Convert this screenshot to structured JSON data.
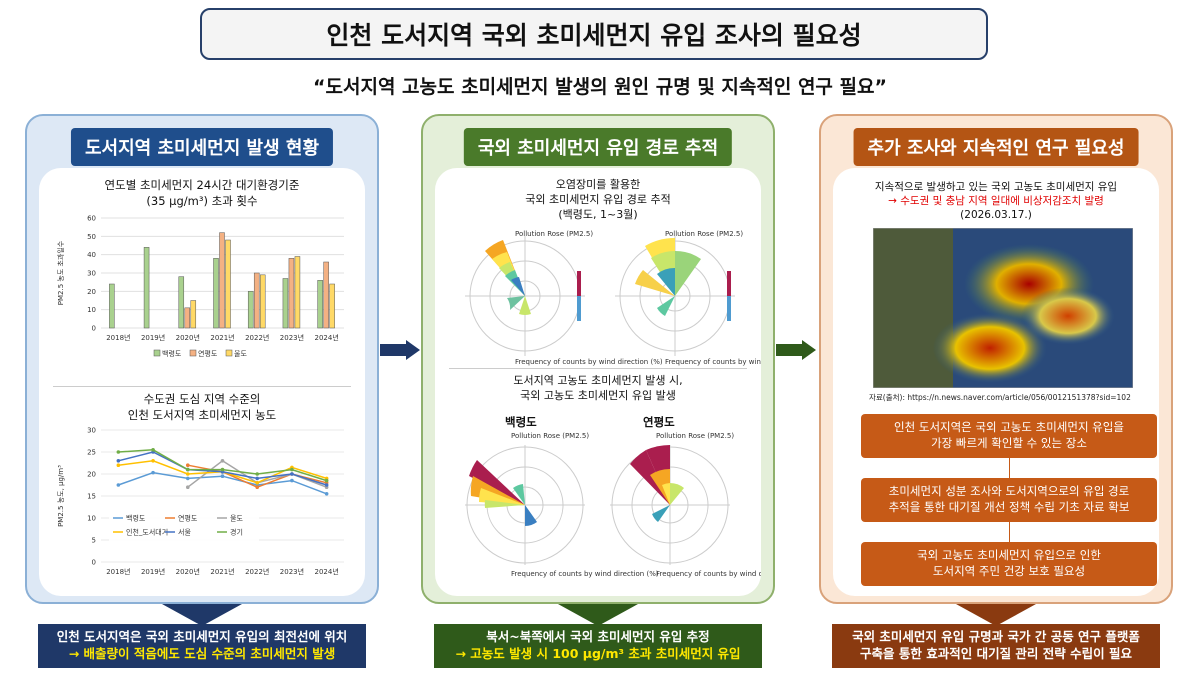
{
  "title": "인천 도서지역 국외 초미세먼지 유입 조사의 필요성",
  "subtitle": "“도서지역 고농도 초미세먼지 발생의 원인 규명 및 지속적인 연구 필요”",
  "col1": {
    "header": "도서지역 초미세먼지 발생 현황",
    "chart1_title_line1": "연도별 초미세먼지 24시간 대기환경기준",
    "chart1_title_line2": "(35 μg/m³) 초과 횟수",
    "chart1_ylabel": "PM2.5 농도 초과일수",
    "chart2_title_line1": "수도권 도심 지역 수준의",
    "chart2_title_line2": "인천 도서지역 초미세먼지 농도",
    "chart2_ylabel": "PM2.5 농도, μg/m³",
    "footer_line1": "인천 도서지역은 국외 초미세먼지 유입의 최전선에 위치",
    "footer_line2": "→ 배출량이 적음에도 도심 수준의 초미세먼지 발생"
  },
  "col2": {
    "header": "국외 초미세먼지 유입 경로 추적",
    "title1_line1": "오염장미를 활용한",
    "title1_line2": "국외 초미세먼지 유입 경로 추적",
    "title1_line3": "(백령도, 1~3월)",
    "title2_line1": "도서지역 고농도 초미세먼지 발생 시,",
    "title2_line2": "국외 고농도 초미세먼지 유입 발생",
    "label_left": "백령도",
    "label_right": "연평도",
    "rose_title": "Pollution Rose (PM2.5)",
    "rose_caption": "Frequency of counts by wind direction (%)",
    "footer_line1": "북서~북쪽에서 국외 초미세먼지 유입 추정",
    "footer_line2": "→ 고농도 발생 시 100 μg/m³ 초과 초미세먼지 유입"
  },
  "col3": {
    "header": "추가 조사와 지속적인 연구 필요성",
    "top_line1": "지속적으로 발생하고 있는 국외 고농도 초미세먼지 유입",
    "top_line2": "→ 수도권 및 충남 지역 일대에 비상저감조치 발령",
    "top_line3": "(2026.03.17.)",
    "source": "자료(출처): https://n.news.naver.com/article/056/0012151378?sid=102",
    "box1_line1": "인천 도서지역은 국외 고농도 초미세먼지 유입을",
    "box1_line2": "가장 빠르게 확인할 수 있는 장소",
    "box2_line1": "초미세먼지 성분 조사와 도서지역으로의 유입 경로",
    "box2_line2": "추적을 통한 대기질 개선 정책 수립 기초 자료 확보",
    "box3_line1": "국외 고농도 초미세먼지 유입으로 인한",
    "box3_line2": "도서지역 주민 건강 보호 필요성",
    "footer_line1": "국외 초미세먼지 유입 규명과 국가 간 공동 연구 플랫폼",
    "footer_line2": "구축을 통한 효과적인 대기질 관리 전략 수립이 필요"
  },
  "colors": {
    "blue_header": "#1f4e8c",
    "green_header": "#4a7a2a",
    "orange_header": "#b45514",
    "footer_blue": "#1f3868",
    "footer_green": "#2f5a1a",
    "footer_brown": "#8a3a10",
    "highlight_yellow": "#ffe800",
    "highlight_red": "#e00000"
  },
  "chart_data": [
    {
      "type": "bar",
      "categories": [
        "2018년",
        "2019년",
        "2020년",
        "2021년",
        "2022년",
        "2023년",
        "2024년"
      ],
      "series": [
        {
          "name": "백령도",
          "values": [
            24,
            44,
            28,
            38,
            20,
            27,
            26
          ],
          "color": "#a9d18e"
        },
        {
          "name": "연평도",
          "values": [
            0,
            0,
            11,
            52,
            30,
            38,
            36
          ],
          "color": "#f4b183"
        },
        {
          "name": "울도",
          "values": [
            0,
            0,
            15,
            48,
            29,
            39,
            24
          ],
          "color": "#ffd966"
        }
      ],
      "ylim": [
        0,
        60
      ],
      "yticks": [
        0,
        10,
        20,
        30,
        40,
        50,
        60
      ]
    },
    {
      "type": "line",
      "categories": [
        "2018년",
        "2019년",
        "2020년",
        "2021년",
        "2022년",
        "2023년",
        "2024년"
      ],
      "series": [
        {
          "name": "백령도",
          "values": [
            17.5,
            20.3,
            19,
            19.5,
            17.5,
            18.5,
            15.5
          ],
          "color": "#5b9bd5"
        },
        {
          "name": "연평도",
          "values": [
            null,
            null,
            22,
            20.5,
            17,
            20,
            18
          ],
          "color": "#ed7d31"
        },
        {
          "name": "울도",
          "values": [
            null,
            null,
            17,
            23,
            18,
            20,
            17
          ],
          "color": "#a5a5a5"
        },
        {
          "name": "인천_도서대기",
          "values": [
            22,
            23,
            20,
            20.5,
            18,
            21.5,
            19
          ],
          "color": "#ffc000"
        },
        {
          "name": "서울",
          "values": [
            23,
            25,
            21,
            20.5,
            19,
            20,
            17.5
          ],
          "color": "#4472c4"
        },
        {
          "name": "경기",
          "values": [
            25,
            25.5,
            21,
            21,
            20,
            21,
            18.5
          ],
          "color": "#70ad47"
        }
      ],
      "ylim": [
        0,
        30
      ],
      "yticks": [
        0,
        5,
        10,
        15,
        20,
        25,
        30
      ]
    }
  ]
}
